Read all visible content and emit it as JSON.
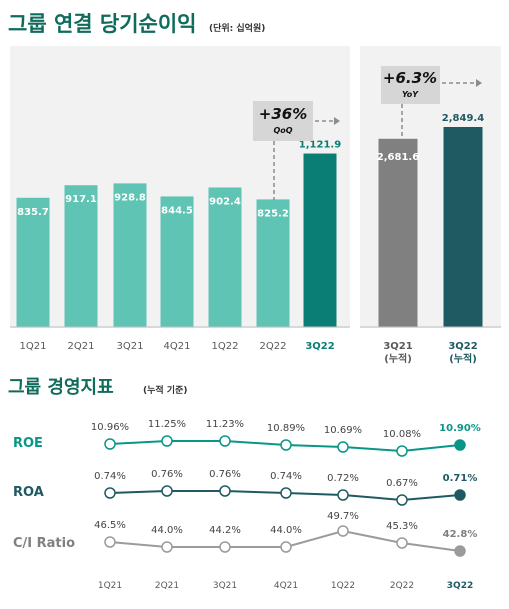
{
  "colors": {
    "title": "#0f6b5c",
    "quarter_bar": "#5fc4b4",
    "quarter_bar_current": "#0a7e74",
    "cum_bar_prev": "#808080",
    "cum_bar_cur": "#1f5a63",
    "panel_bg": "#f2f2f2",
    "change_box": "#d6d6d6",
    "roe_line": "#0a9687",
    "roa_line": "#1f5a63",
    "ci_line": "#9b9b9b",
    "axis_text": "#595959",
    "value_text": "#ffffff"
  },
  "chart_data": [
    {
      "type": "bar",
      "title": "그룹 연결 당기순이익",
      "subtitle": "(단위: 십억원)",
      "categories": [
        "1Q21",
        "2Q21",
        "3Q21",
        "4Q21",
        "1Q22",
        "2Q22",
        "3Q22"
      ],
      "values": [
        835.7,
        917.1,
        928.8,
        844.5,
        902.4,
        825.2,
        1121.9
      ],
      "value_labels": [
        "835.7",
        "917.1",
        "928.8",
        "844.5",
        "902.4",
        "825.2",
        "1,121.9"
      ],
      "ylim": [
        0,
        1500
      ],
      "annotation": {
        "value": "+36%",
        "label": "QoQ"
      }
    },
    {
      "type": "bar",
      "categories": [
        [
          "3Q21",
          "(누적)"
        ],
        [
          "3Q22",
          "(누적)"
        ]
      ],
      "values": [
        2681.6,
        2849.4
      ],
      "value_labels": [
        "2,681.6",
        "2,849.4"
      ],
      "ylim": [
        0,
        3800
      ],
      "annotation": {
        "value": "+6.3%",
        "label": "YoY"
      }
    },
    {
      "type": "line",
      "title": "그룹 경영지표",
      "subtitle": "(누적 기준)",
      "categories": [
        "1Q21",
        "2Q21",
        "3Q21",
        "4Q21",
        "1Q22",
        "2Q22",
        "3Q22"
      ],
      "series": [
        {
          "name": "ROE",
          "values": [
            10.96,
            11.25,
            11.23,
            10.89,
            10.69,
            10.08,
            10.9
          ],
          "labels": [
            "10.96%",
            "11.25%",
            "11.23%",
            "10.89%",
            "10.69%",
            "10.08%",
            "10.90%"
          ]
        },
        {
          "name": "ROA",
          "values": [
            0.74,
            0.76,
            0.76,
            0.74,
            0.72,
            0.67,
            0.71
          ],
          "labels": [
            "0.74%",
            "0.76%",
            "0.76%",
            "0.74%",
            "0.72%",
            "0.67%",
            "0.71%"
          ]
        },
        {
          "name": "C/I Ratio",
          "values": [
            46.5,
            44.0,
            44.2,
            44.0,
            49.7,
            45.3,
            42.8
          ],
          "labels": [
            "46.5%",
            "44.0%",
            "44.2%",
            "44.0%",
            "49.7%",
            "45.3%",
            "42.8%"
          ]
        }
      ]
    }
  ]
}
